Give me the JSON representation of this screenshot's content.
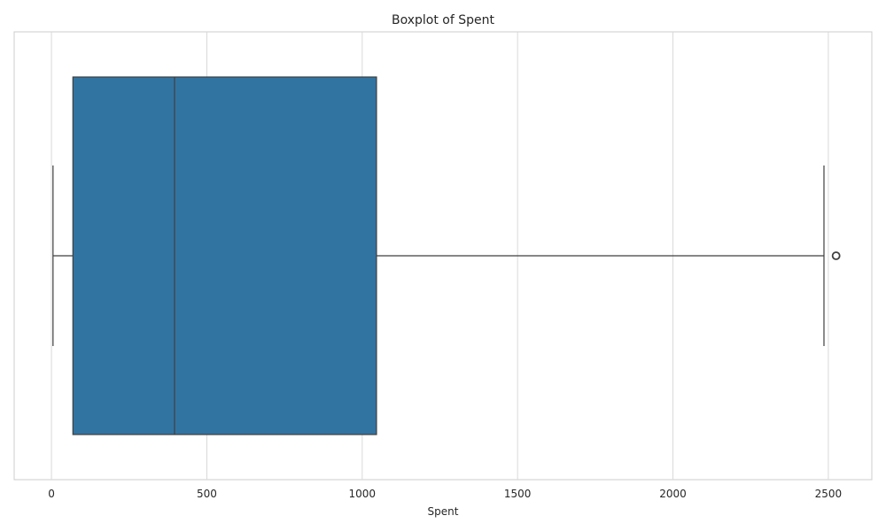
{
  "chart_data": {
    "type": "boxplot",
    "title": "Boxplot of Spent",
    "xlabel": "Spent",
    "ylabel": "",
    "xlim": [
      -120,
      2640
    ],
    "xticks": [
      0,
      500,
      1000,
      1500,
      2000,
      2500
    ],
    "grid": "vertical",
    "orientation": "horizontal",
    "series": [
      {
        "whisker_low": 5,
        "q1": 69,
        "median": 396,
        "q3": 1046,
        "whisker_high": 2486,
        "outliers": [
          2525
        ],
        "color": "#3274a1"
      }
    ]
  }
}
